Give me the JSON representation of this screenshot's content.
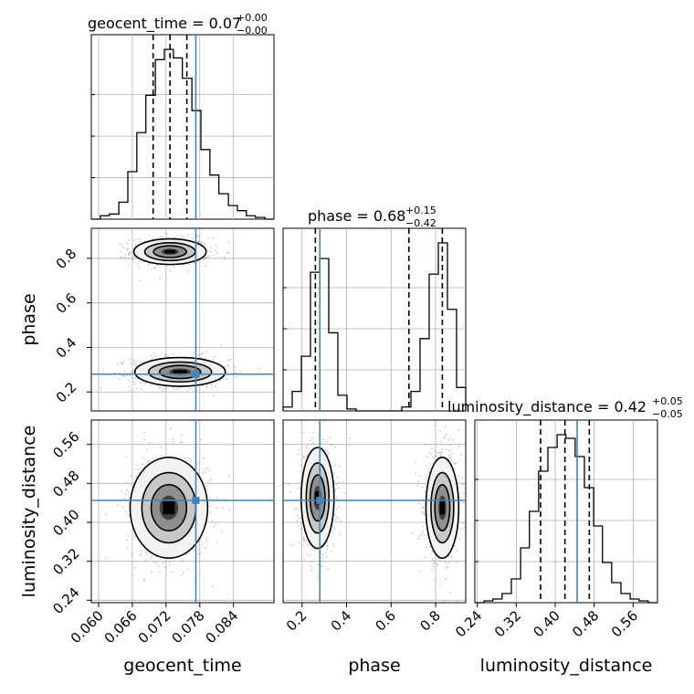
{
  "chart_data": {
    "type": "corner",
    "parameters": [
      "geocent_time",
      "phase",
      "luminosity_distance"
    ],
    "truth_color": "#4682b4",
    "truths": {
      "geocent_time": 0.0773,
      "phase": 0.28,
      "luminosity_distance": 0.445
    },
    "ranges": {
      "geocent_time": [
        0.0587,
        0.0912
      ],
      "phase": [
        0.115,
        0.935
      ],
      "luminosity_distance": [
        0.235,
        0.61
      ]
    },
    "ticks": {
      "geocent_time": {
        "values": [
          0.06,
          0.066,
          0.072,
          0.078,
          0.084
        ],
        "labels": [
          "0.060",
          "0.066",
          "0.072",
          "0.078",
          "0.084"
        ]
      },
      "phase": {
        "values": [
          0.2,
          0.4,
          0.6,
          0.8
        ],
        "labels": [
          "0.2",
          "0.4",
          "0.6",
          "0.8"
        ]
      },
      "luminosity_distance": {
        "values": [
          0.24,
          0.32,
          0.4,
          0.48,
          0.56
        ],
        "labels": [
          "0.24",
          "0.32",
          "0.40",
          "0.48",
          "0.56"
        ]
      }
    },
    "titles": {
      "geocent_time": {
        "main": "geocent_time = 0.07",
        "upper": "+0.00",
        "lower": "−0.00"
      },
      "phase": {
        "main": "phase = 0.68",
        "upper": "+0.15",
        "lower": "−0.42"
      },
      "luminosity_distance": {
        "main": "luminosity_distance = 0.42",
        "upper": "+0.05",
        "lower": "−0.05"
      }
    },
    "quantiles": {
      "geocent_time": [
        0.0697,
        0.0727,
        0.0757
      ],
      "phase": [
        0.26,
        0.68,
        0.83
      ],
      "luminosity_distance": [
        0.37,
        0.42,
        0.47
      ]
    },
    "histograms": {
      "geocent_time": {
        "edges": [
          0.0587,
          0.0603,
          0.0619,
          0.0636,
          0.0652,
          0.0668,
          0.0684,
          0.0701,
          0.0717,
          0.0733,
          0.0749,
          0.0766,
          0.0782,
          0.0798,
          0.0814,
          0.0831,
          0.0847,
          0.0863,
          0.0879,
          0.0896,
          0.0912
        ],
        "counts": [
          0,
          2,
          3,
          10,
          28,
          51,
          73,
          94,
          100,
          95,
          83,
          64,
          41,
          26,
          15,
          8,
          5,
          2,
          1,
          0
        ]
      },
      "phase": {
        "edges": [
          0.115,
          0.156,
          0.197,
          0.238,
          0.279,
          0.32,
          0.361,
          0.402,
          0.443,
          0.484,
          0.525,
          0.566,
          0.607,
          0.648,
          0.689,
          0.73,
          0.771,
          0.812,
          0.853,
          0.894,
          0.935
        ],
        "counts": [
          2,
          10,
          28,
          71,
          78,
          40,
          8,
          1,
          0,
          0,
          0,
          0,
          0,
          2,
          10,
          37,
          70,
          86,
          52,
          12
        ]
      },
      "luminosity_distance": {
        "edges": [
          0.235,
          0.254,
          0.272,
          0.291,
          0.31,
          0.329,
          0.347,
          0.366,
          0.385,
          0.404,
          0.422,
          0.441,
          0.46,
          0.479,
          0.497,
          0.516,
          0.535,
          0.554,
          0.572,
          0.591,
          0.61
        ],
        "counts": [
          0,
          1,
          2,
          5,
          13,
          30,
          50,
          72,
          85,
          92,
          90,
          80,
          63,
          42,
          22,
          11,
          5,
          2,
          1,
          0
        ]
      }
    },
    "modes": {
      "phase_vs_geocent_time": [
        {
          "x": 0.0727,
          "y": 0.83,
          "sx": 0.0028,
          "sy": 0.025
        },
        {
          "x": 0.0745,
          "y": 0.29,
          "sx": 0.0035,
          "sy": 0.028
        }
      ],
      "lumdist_vs_geocent_time": [
        {
          "x": 0.0725,
          "y": 0.43,
          "sx": 0.003,
          "sy": 0.045
        }
      ],
      "lumdist_vs_phase": [
        {
          "x": 0.27,
          "y": 0.45,
          "sx": 0.032,
          "sy": 0.045
        },
        {
          "x": 0.83,
          "y": 0.43,
          "sx": 0.032,
          "sy": 0.045
        }
      ]
    }
  }
}
